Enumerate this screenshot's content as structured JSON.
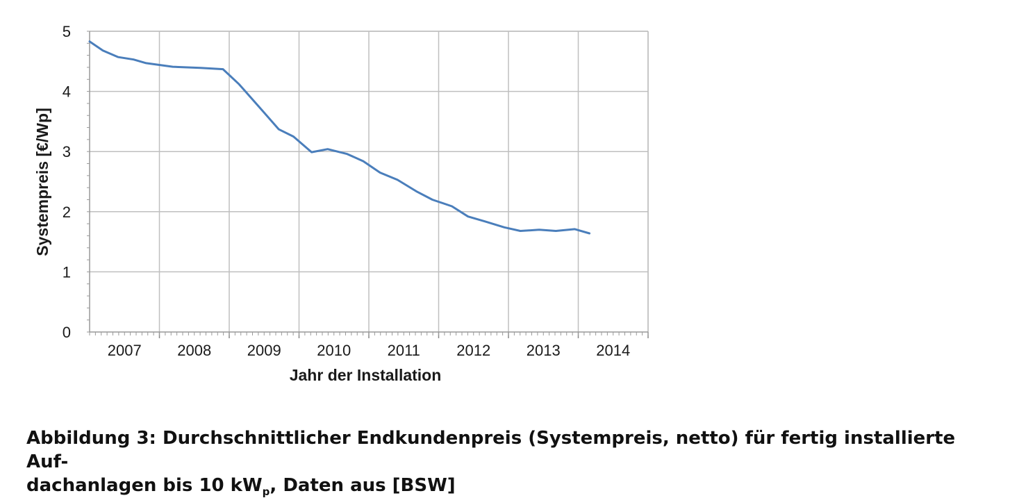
{
  "chart_data": {
    "type": "line",
    "xlabel": "Jahr der Installation",
    "ylabel": "Systempreis [€/Wp]",
    "ylim": [
      0,
      5
    ],
    "xlim": [
      2006.5,
      2014.5
    ],
    "yticks": [
      "0",
      "1",
      "2",
      "3",
      "4",
      "5"
    ],
    "xtick_labels": [
      "2007",
      "2008",
      "2009",
      "2010",
      "2011",
      "2012",
      "2013",
      "2014"
    ],
    "grid": true,
    "legend": "none",
    "series_color": "#4a7ebb",
    "series": [
      {
        "x": [
          2006.5,
          2006.69,
          2006.91,
          2007.13,
          2007.31,
          2007.69,
          2008.09,
          2008.41,
          2008.64,
          2008.93,
          2009.21,
          2009.42,
          2009.68,
          2009.91,
          2010.19,
          2010.42,
          2010.66,
          2010.91,
          2011.18,
          2011.41,
          2011.69,
          2011.92,
          2012.16,
          2012.44,
          2012.67,
          2012.94,
          2013.18,
          2013.45,
          2013.66
        ],
        "y": [
          4.83,
          4.68,
          4.57,
          4.53,
          4.47,
          4.41,
          4.39,
          4.37,
          4.12,
          3.74,
          3.37,
          3.25,
          2.99,
          3.04,
          2.96,
          2.84,
          2.65,
          2.53,
          2.34,
          2.2,
          2.09,
          1.92,
          1.84,
          1.74,
          1.68,
          1.7,
          1.68,
          1.71,
          1.64
        ]
      }
    ]
  },
  "caption": {
    "part1": "Abbildung 3: Durchschnittlicher Endkundenpreis (Systempreis, netto) für fertig installierte Auf-",
    "part2": "dachanlagen bis 10 kW",
    "sub": "p",
    "part3": ", Daten aus [BSW]"
  }
}
